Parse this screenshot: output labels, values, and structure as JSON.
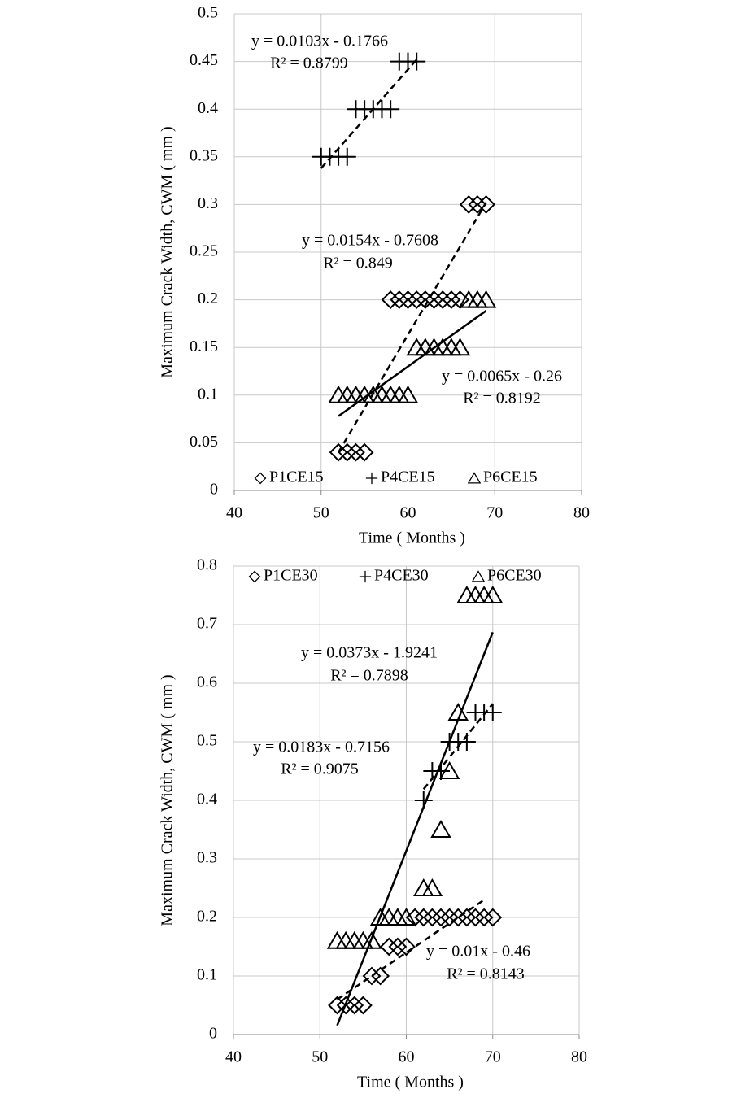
{
  "chart_data": [
    {
      "type": "scatter",
      "xlabel": "Time ( Months )",
      "ylabel": "Maximum Crack Width, CWM ( mm )",
      "xlim": [
        40,
        80
      ],
      "ylim": [
        0,
        0.5
      ],
      "xticks": [
        40,
        50,
        60,
        70,
        80
      ],
      "yticks": [
        0,
        0.05,
        0.1,
        0.15,
        0.2,
        0.25,
        0.3,
        0.35,
        0.4,
        0.45,
        0.5
      ],
      "grid": true,
      "legend": "bottom",
      "series": [
        {
          "name": "P1CE15",
          "marker": "diamond",
          "color": "#000000",
          "x": [
            52,
            53,
            54,
            55,
            58,
            59,
            60,
            61,
            62,
            63,
            64,
            65,
            66,
            67,
            68,
            69
          ],
          "values": [
            0.04,
            0.04,
            0.04,
            0.04,
            0.2,
            0.2,
            0.2,
            0.2,
            0.2,
            0.2,
            0.2,
            0.2,
            0.2,
            0.3,
            0.3,
            0.3
          ],
          "trendline": {
            "label": "y = 0.0154x - 0.7608",
            "r2_label": "R² = 0.849",
            "style": "dashed",
            "x": [
              52,
              69
            ],
            "y": [
              0.04,
              0.302
            ]
          }
        },
        {
          "name": "P4CE15",
          "marker": "plus",
          "color": "#000000",
          "x": [
            50,
            51,
            52,
            53,
            54,
            55,
            56,
            57,
            58,
            59,
            60,
            61
          ],
          "values": [
            0.35,
            0.35,
            0.35,
            0.35,
            0.4,
            0.4,
            0.4,
            0.4,
            0.4,
            0.45,
            0.45,
            0.45
          ],
          "trendline": {
            "label": "y = 0.0103x - 0.1766",
            "r2_label": "R² = 0.8799",
            "style": "dashed",
            "x": [
              50,
              61
            ],
            "y": [
              0.338,
              0.452
            ]
          }
        },
        {
          "name": "P6CE15",
          "marker": "triangle",
          "color": "#000000",
          "x": [
            52,
            53,
            54,
            55,
            56,
            57,
            58,
            59,
            60,
            61,
            62,
            63,
            64,
            65,
            66,
            67,
            68,
            69
          ],
          "values": [
            0.1,
            0.1,
            0.1,
            0.1,
            0.1,
            0.1,
            0.1,
            0.1,
            0.1,
            0.15,
            0.15,
            0.15,
            0.15,
            0.15,
            0.15,
            0.2,
            0.2,
            0.2
          ],
          "trendline": {
            "label": "y = 0.0065x - 0.26",
            "r2_label": "R² = 0.8192",
            "style": "solid",
            "x": [
              52,
              69
            ],
            "y": [
              0.078,
              0.1885
            ]
          }
        }
      ]
    },
    {
      "type": "scatter",
      "xlabel": "Time ( Months )",
      "ylabel": "Maximum Crack Width, CWM ( mm )",
      "xlim": [
        40,
        80
      ],
      "ylim": [
        0,
        0.8
      ],
      "xticks": [
        40,
        50,
        60,
        70,
        80
      ],
      "yticks": [
        0,
        0.1,
        0.2,
        0.3,
        0.4,
        0.5,
        0.6,
        0.7,
        0.8
      ],
      "grid": true,
      "legend": "top",
      "series": [
        {
          "name": "P1CE30",
          "marker": "diamond",
          "color": "#000000",
          "x": [
            52,
            53,
            54,
            55,
            56,
            57,
            58,
            59,
            60,
            61,
            62,
            63,
            64,
            65,
            66,
            67,
            68,
            69,
            70
          ],
          "values": [
            0.05,
            0.05,
            0.05,
            0.05,
            0.1,
            0.1,
            0.15,
            0.15,
            0.15,
            0.2,
            0.2,
            0.2,
            0.2,
            0.2,
            0.2,
            0.2,
            0.2,
            0.2,
            0.2
          ],
          "trendline": {
            "label": "y = 0.01x - 0.46",
            "r2_label": "R² = 0.8143",
            "style": "dashed",
            "x": [
              52,
              69
            ],
            "y": [
              0.06,
              0.23
            ]
          }
        },
        {
          "name": "P4CE30",
          "marker": "plus",
          "color": "#000000",
          "x": [
            62,
            63,
            64,
            65,
            66,
            67,
            68,
            69,
            70
          ],
          "values": [
            0.4,
            0.45,
            0.45,
            0.5,
            0.5,
            0.5,
            0.55,
            0.55,
            0.55
          ],
          "trendline": {
            "label": "y = 0.0183x - 0.7156",
            "r2_label": "R² = 0.9075",
            "style": "dashed",
            "x": [
              62,
              70
            ],
            "y": [
              0.419,
              0.565
            ]
          }
        },
        {
          "name": "P6CE30",
          "marker": "triangle",
          "color": "#000000",
          "x": [
            52,
            53,
            54,
            55,
            56,
            57,
            58,
            59,
            60,
            62,
            63,
            64,
            65,
            66,
            67,
            68,
            69,
            70
          ],
          "values": [
            0.16,
            0.16,
            0.16,
            0.16,
            0.16,
            0.2,
            0.2,
            0.2,
            0.2,
            0.25,
            0.25,
            0.35,
            0.45,
            0.55,
            0.75,
            0.75,
            0.75,
            0.75
          ],
          "trendline": {
            "label": "y = 0.0373x - 1.9241",
            "r2_label": "R² = 0.7898",
            "style": "solid",
            "x": [
              52,
              70
            ],
            "y": [
              0.0155,
              0.687
            ]
          }
        }
      ]
    }
  ]
}
